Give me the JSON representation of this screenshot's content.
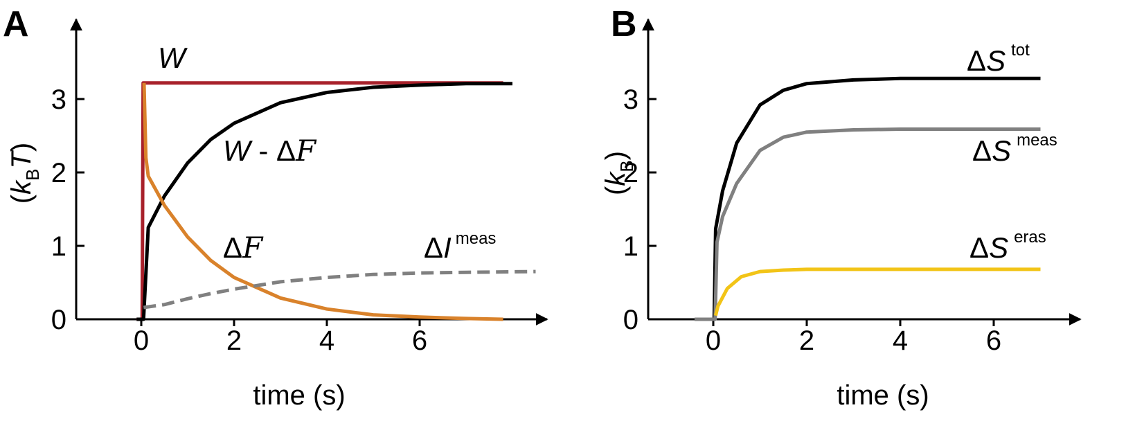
{
  "chart_data": [
    {
      "panel": "A",
      "type": "line",
      "xlabel": "time (s)",
      "ylabel": {
        "open": "(",
        "k": "k",
        "sub": "B",
        "t": "T",
        "close": ")"
      },
      "xlim": [
        -1.4,
        8.7
      ],
      "ylim": [
        0,
        3.55
      ],
      "xticks": [
        0,
        2,
        4,
        6
      ],
      "yticks": [
        0,
        1,
        2,
        3
      ],
      "grid": false,
      "series": [
        {
          "key": "W",
          "label": {
            "main": "W",
            "tail": "",
            "sup": ""
          },
          "color": "#a8212b",
          "dash": false,
          "x": [
            -0.1,
            0.02,
            0.04,
            0.1,
            1,
            2,
            3,
            4,
            5,
            6,
            7,
            7.8
          ],
          "y": [
            0,
            0,
            3.22,
            3.22,
            3.22,
            3.22,
            3.22,
            3.22,
            3.22,
            3.22,
            3.22,
            3.22
          ]
        },
        {
          "key": "W-dF",
          "label": {
            "main": "W",
            "tail": " - Δ",
            "script": "F",
            "sup": ""
          },
          "color": "#000000",
          "dash": false,
          "x": [
            -0.1,
            0.05,
            0.15,
            0.5,
            1,
            1.5,
            2,
            3,
            4,
            5,
            6,
            7,
            8
          ],
          "y": [
            0,
            0,
            1.25,
            1.68,
            2.13,
            2.45,
            2.67,
            2.95,
            3.09,
            3.16,
            3.19,
            3.21,
            3.21
          ]
        },
        {
          "key": "dF",
          "label": {
            "main": "Δ",
            "script": "F",
            "sup": ""
          },
          "color": "#d9822b",
          "dash": false,
          "x": [
            0.06,
            0.1,
            0.15,
            0.5,
            1,
            1.5,
            2,
            3,
            4,
            5,
            6,
            7,
            7.8
          ],
          "y": [
            3.22,
            2.2,
            1.95,
            1.55,
            1.12,
            0.8,
            0.57,
            0.29,
            0.14,
            0.06,
            0.03,
            0.01,
            0.0
          ]
        },
        {
          "key": "dI",
          "label": {
            "main": "ΔI",
            "sup": "meas"
          },
          "color": "#808080",
          "dash": true,
          "x": [
            0.05,
            0.5,
            1,
            1.5,
            2,
            2.5,
            3,
            4,
            5,
            6,
            7,
            8.5
          ],
          "y": [
            0.16,
            0.2,
            0.28,
            0.35,
            0.41,
            0.46,
            0.51,
            0.57,
            0.61,
            0.63,
            0.64,
            0.65
          ]
        }
      ]
    },
    {
      "panel": "B",
      "type": "line",
      "xlabel": "time (s)",
      "ylabel": {
        "open": "(",
        "k": "k",
        "sub": "B",
        "t": "",
        "close": ")"
      },
      "xlim": [
        -1.4,
        7.9
      ],
      "ylim": [
        0,
        3.55
      ],
      "xticks": [
        0,
        2,
        4,
        6
      ],
      "yticks": [
        0,
        1,
        2,
        3
      ],
      "grid": false,
      "series": [
        {
          "key": "Stot",
          "label": {
            "main": "ΔS",
            "sup": "tot"
          },
          "color": "#000000",
          "dash": false,
          "x": [
            0.02,
            0.05,
            0.2,
            0.5,
            1,
            1.5,
            2,
            3,
            4,
            5,
            6,
            7
          ],
          "y": [
            0,
            1.23,
            1.75,
            2.4,
            2.92,
            3.12,
            3.21,
            3.26,
            3.28,
            3.28,
            3.28,
            3.28
          ]
        },
        {
          "key": "Smeas",
          "label": {
            "main": "ΔS",
            "sup": "meas"
          },
          "color": "#808080",
          "dash": false,
          "x": [
            -0.4,
            0.0,
            0.04,
            0.08,
            0.2,
            0.5,
            1,
            1.5,
            2,
            3,
            4,
            5,
            7
          ],
          "y": [
            0,
            0,
            0,
            1.05,
            1.4,
            1.85,
            2.3,
            2.48,
            2.55,
            2.58,
            2.59,
            2.59,
            2.59
          ]
        },
        {
          "key": "Seras",
          "label": {
            "main": "ΔS",
            "sup": "eras"
          },
          "color": "#f2c417",
          "dash": false,
          "x": [
            0.05,
            0.1,
            0.3,
            0.6,
            1,
            1.5,
            2,
            3,
            4,
            5,
            7
          ],
          "y": [
            0.05,
            0.18,
            0.42,
            0.58,
            0.65,
            0.67,
            0.68,
            0.68,
            0.68,
            0.68,
            0.68
          ]
        }
      ]
    }
  ]
}
